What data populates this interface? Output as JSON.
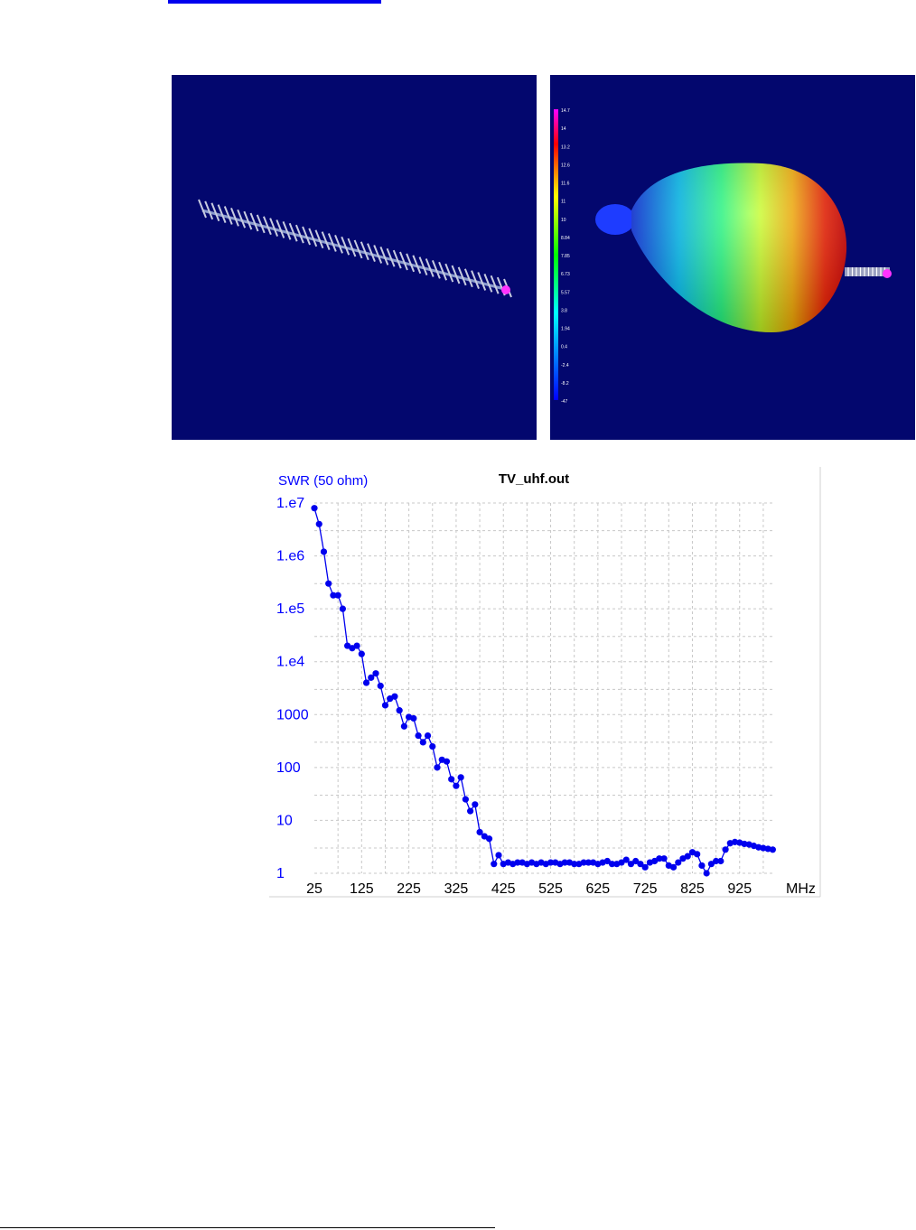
{
  "colors": {
    "panel_bg": "#03076e",
    "link": "#0000ee",
    "series": "#0000ee",
    "axis_text": "#0000ff",
    "grid": "#c8c8c8"
  },
  "scale_ticks": [
    "14.7",
    "14",
    "13.2",
    "12.6",
    "11.6",
    "11",
    "10",
    "8.84",
    "7.85",
    "6.73",
    "5.57",
    "3.8",
    "1.94",
    "0.4",
    "-2.4",
    "-8.2",
    "-47"
  ],
  "chart_data": {
    "type": "line",
    "title": "TV_uhf.out",
    "ylabel": "SWR (50 ohm)",
    "xlabel": "MHz",
    "y_scale": "log",
    "ylim": [
      1,
      10000000
    ],
    "xlim": [
      25,
      1000
    ],
    "x_ticks": [
      "25",
      "125",
      "225",
      "325",
      "425",
      "525",
      "625",
      "725",
      "825",
      "925"
    ],
    "y_ticks": [
      "1",
      "10",
      "100",
      "1000",
      "1.e4",
      "1.e5",
      "1.e6",
      "1.e7"
    ],
    "grid": true,
    "series": [
      {
        "name": "",
        "x": [
          25,
          35,
          45,
          55,
          65,
          75,
          85,
          95,
          105,
          115,
          125,
          135,
          145,
          155,
          165,
          175,
          185,
          195,
          205,
          215,
          225,
          235,
          245,
          255,
          265,
          275,
          285,
          295,
          305,
          315,
          325,
          335,
          345,
          355,
          365,
          375,
          385,
          395,
          405,
          415,
          425,
          435,
          445,
          455,
          465,
          475,
          485,
          495,
          505,
          515,
          525,
          535,
          545,
          555,
          565,
          575,
          585,
          595,
          605,
          615,
          625,
          635,
          645,
          655,
          665,
          675,
          685,
          695,
          705,
          715,
          725,
          735,
          745,
          755,
          765,
          775,
          785,
          795,
          805,
          815,
          825,
          835,
          845,
          855,
          865,
          875,
          885,
          895,
          905,
          915,
          925,
          935,
          945,
          955,
          965,
          975,
          985,
          995
        ],
        "y": [
          8000000,
          4000000,
          1200000,
          300000,
          180000,
          180000,
          100000,
          20000,
          18000,
          20000,
          14000,
          4000,
          5000,
          6000,
          3500,
          1500,
          2000,
          2200,
          1200,
          600,
          900,
          850,
          400,
          300,
          400,
          250,
          100,
          140,
          130,
          60,
          45,
          65,
          25,
          15,
          20,
          6,
          5,
          4.5,
          1.5,
          2.2,
          1.5,
          1.6,
          1.5,
          1.6,
          1.6,
          1.5,
          1.6,
          1.5,
          1.6,
          1.5,
          1.6,
          1.6,
          1.5,
          1.6,
          1.6,
          1.5,
          1.5,
          1.6,
          1.6,
          1.6,
          1.5,
          1.6,
          1.7,
          1.5,
          1.5,
          1.6,
          1.8,
          1.5,
          1.7,
          1.5,
          1.3,
          1.6,
          1.7,
          1.9,
          1.9,
          1.4,
          1.3,
          1.6,
          1.9,
          2.1,
          2.5,
          2.3,
          1.4,
          1.0,
          1.5,
          1.7,
          1.7,
          2.8,
          3.7,
          3.9,
          3.8,
          3.6,
          3.5,
          3.3,
          3.1,
          3.0,
          2.9,
          2.8
        ]
      }
    ]
  }
}
